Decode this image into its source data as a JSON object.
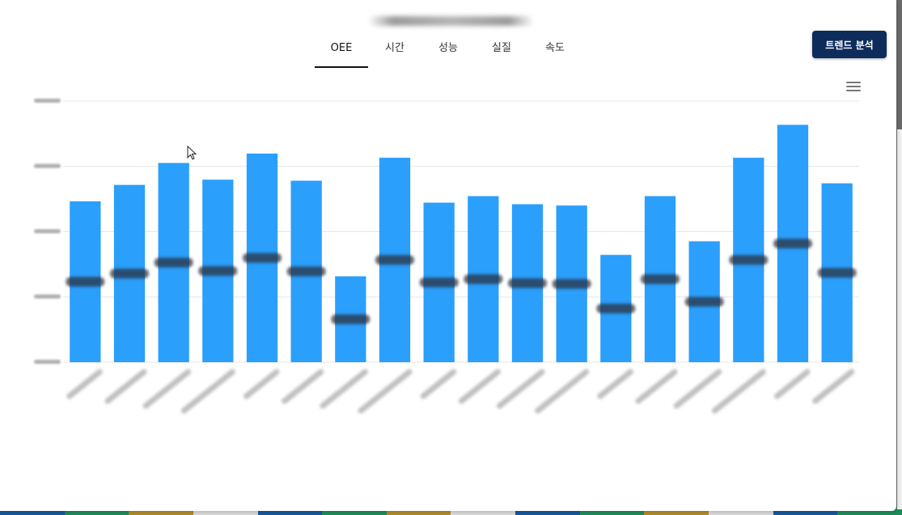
{
  "tabs": [
    {
      "label": "OEE",
      "active": true
    },
    {
      "label": "시간",
      "active": false
    },
    {
      "label": "성능",
      "active": false
    },
    {
      "label": "실질",
      "active": false
    },
    {
      "label": "속도",
      "active": false
    }
  ],
  "trend_button": {
    "label": "트렌드 분석"
  },
  "menu": {
    "icon": "hamburger-menu-icon"
  },
  "colors": {
    "bar": "#2b9ffc",
    "button": "#0d2c5c",
    "grid": "#e6e6e6"
  },
  "underlay_colors": [
    "#17589a",
    "#1e8a5a",
    "#b08a2a",
    "#d9d9d9"
  ],
  "chart_data": {
    "type": "bar",
    "ylim": [
      0,
      100
    ],
    "grid": true,
    "legend": "none",
    "values": [
      61.6,
      67.9,
      76.3,
      69.9,
      79.9,
      69.5,
      32.9,
      78.3,
      61.1,
      63.6,
      60.5,
      60.0,
      41.1,
      63.6,
      46.3,
      78.3,
      90.9,
      68.5
    ]
  }
}
